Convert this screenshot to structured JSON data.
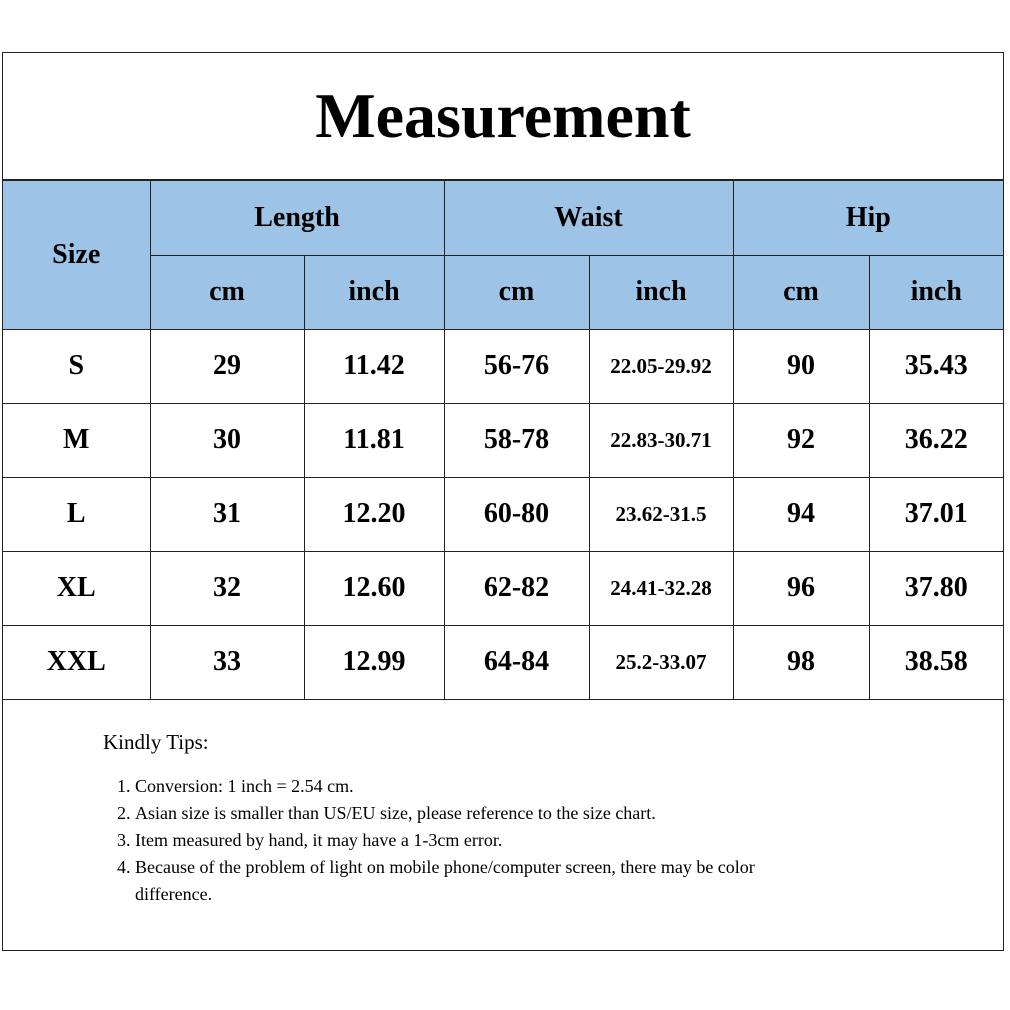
{
  "title": "Measurement",
  "header": {
    "size": "Size",
    "groups": [
      "Length",
      "Waist",
      "Hip"
    ],
    "units": [
      "cm",
      "inch",
      "cm",
      "inch",
      "cm",
      "inch"
    ]
  },
  "rows": [
    [
      "S",
      "29",
      "11.42",
      "56-76",
      "22.05-29.92",
      "90",
      "35.43"
    ],
    [
      "M",
      "30",
      "11.81",
      "58-78",
      "22.83-30.71",
      "92",
      "36.22"
    ],
    [
      "L",
      "31",
      "12.20",
      "60-80",
      "23.62-31.5",
      "94",
      "37.01"
    ],
    [
      "XL",
      "32",
      "12.60",
      "62-82",
      "24.41-32.28",
      "96",
      "37.80"
    ],
    [
      "XXL",
      "33",
      "12.99",
      "64-84",
      "25.2-33.07",
      "98",
      "38.58"
    ]
  ],
  "tips": {
    "title": "Kindly Tips:",
    "items": [
      "Conversion: 1 inch = 2.54 cm.",
      "Asian size is smaller than US/EU size, please reference to the size chart.",
      "Item measured by hand, it may have a 1-3cm error.",
      "Because of the problem of light on mobile phone/computer screen, there may be color difference."
    ]
  },
  "colors": {
    "header_bg": "#9dc3e6"
  }
}
